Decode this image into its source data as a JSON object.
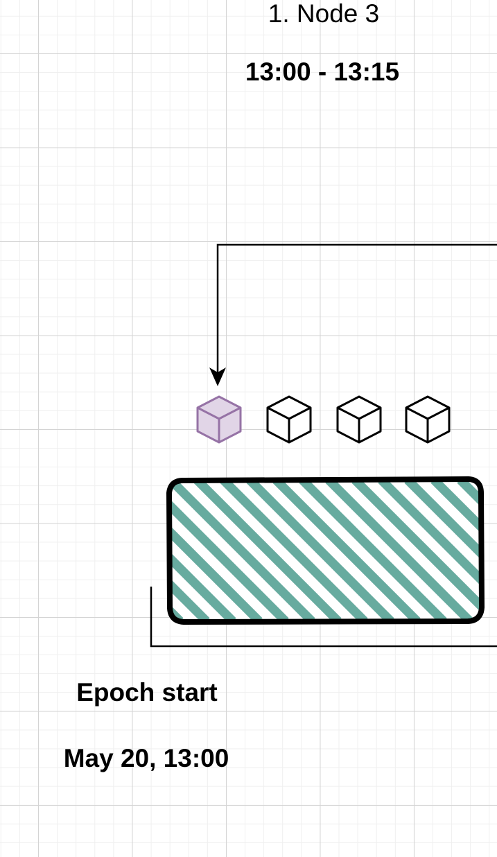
{
  "node": {
    "title": "1. Node 3",
    "time_range": "13:00 - 13:15"
  },
  "epoch": {
    "label": "Epoch start",
    "date": "May 20, 13:00"
  },
  "blocks": [
    {
      "state": "active",
      "color": "#e1d5e7",
      "stroke": "#9673a6"
    },
    {
      "state": "default",
      "color": "#ffffff",
      "stroke": "#000000"
    },
    {
      "state": "default",
      "color": "#ffffff",
      "stroke": "#000000"
    },
    {
      "state": "default",
      "color": "#ffffff",
      "stroke": "#000000"
    }
  ],
  "colors": {
    "hatch": "#67ab9f",
    "outline": "#000000"
  }
}
